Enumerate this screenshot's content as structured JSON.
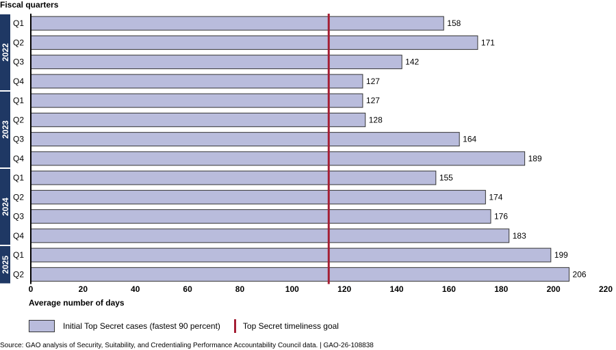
{
  "chart_data": {
    "type": "bar",
    "orientation": "horizontal",
    "title": "Fiscal quarters",
    "xlabel": "Average number of days",
    "xlim": [
      0,
      220
    ],
    "xticks": [
      0,
      20,
      40,
      60,
      80,
      100,
      120,
      140,
      160,
      180,
      200,
      220
    ],
    "groups": [
      {
        "year": "2022",
        "quarters": [
          "Q1",
          "Q2",
          "Q3",
          "Q4"
        ]
      },
      {
        "year": "2023",
        "quarters": [
          "Q1",
          "Q2",
          "Q3",
          "Q4"
        ]
      },
      {
        "year": "2024",
        "quarters": [
          "Q1",
          "Q2",
          "Q3",
          "Q4"
        ]
      },
      {
        "year": "2025",
        "quarters": [
          "Q1",
          "Q2"
        ]
      }
    ],
    "categories": [
      "2022 Q1",
      "2022 Q2",
      "2022 Q3",
      "2022 Q4",
      "2023 Q1",
      "2023 Q2",
      "2023 Q3",
      "2023 Q4",
      "2024 Q1",
      "2024 Q2",
      "2024 Q3",
      "2024 Q4",
      "2025 Q1",
      "2025 Q2"
    ],
    "values": [
      158,
      171,
      142,
      127,
      127,
      128,
      164,
      189,
      155,
      174,
      176,
      183,
      199,
      206
    ],
    "goal_value": 114,
    "legend": {
      "bar_label": "Initial Top Secret cases (fastest 90 percent)",
      "goal_label": "Top Secret timeliness goal"
    },
    "colors": {
      "bar_fill": "#b9bcdc",
      "bar_stroke": "#333333",
      "goal_line": "#a41e34",
      "year_band": "#1f3864"
    }
  },
  "source": "Source: GAO analysis of Security, Suitability, and Credentialing Performance Accountability Council data.  |  GAO-26-108838"
}
